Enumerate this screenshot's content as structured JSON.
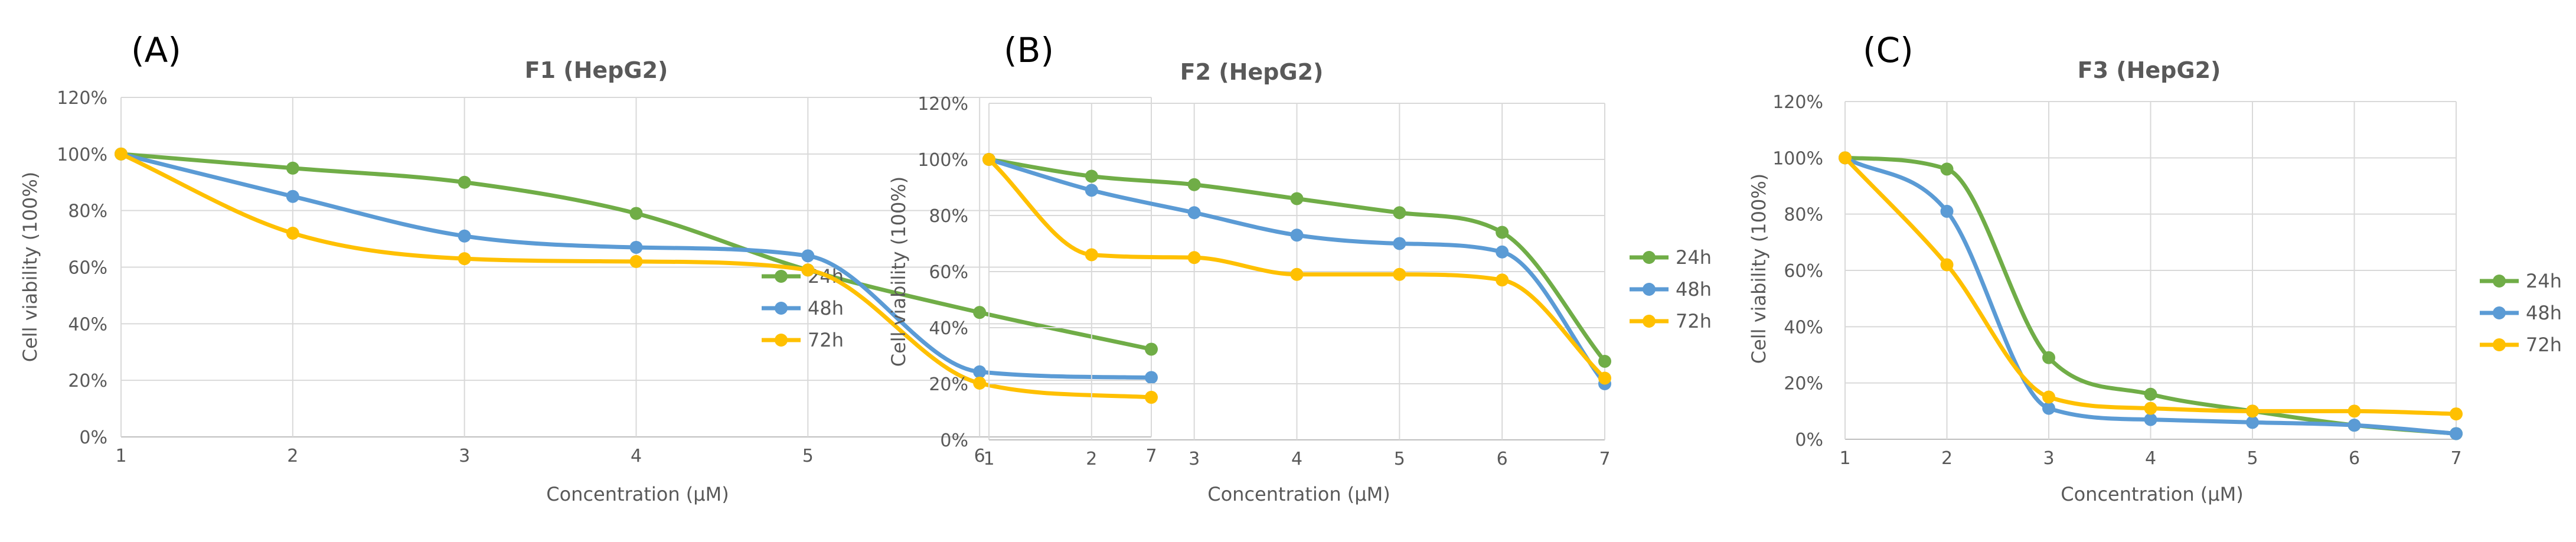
{
  "chart_data": [
    {
      "panel_label": "(A)",
      "type": "line",
      "title": "F1 (HepG2)",
      "xlabel": "Concentration (µM)",
      "ylabel": "Cell viability (100%)",
      "x": [
        1,
        2,
        3,
        4,
        5,
        6,
        7
      ],
      "xlim": [
        1,
        7
      ],
      "ylim": [
        0,
        120
      ],
      "y_ticks": [
        "0%",
        "20%",
        "40%",
        "60%",
        "80%",
        "100%",
        "120%"
      ],
      "grid": true,
      "legend_position": "right",
      "series": [
        {
          "name": "24h",
          "color": "#70AD47",
          "values": [
            100,
            95,
            90,
            79,
            59,
            44,
            31
          ]
        },
        {
          "name": "48h",
          "color": "#5B9BD5",
          "values": [
            100,
            85,
            71,
            67,
            64,
            23,
            21
          ]
        },
        {
          "name": "72h",
          "color": "#FFC000",
          "values": [
            100,
            72,
            63,
            62,
            59,
            19,
            14
          ]
        }
      ]
    },
    {
      "panel_label": "(B)",
      "type": "line",
      "title": "F2 (HepG2)",
      "xlabel": "Concentration (µM)",
      "ylabel": "Cell viability (100%)",
      "x": [
        1,
        2,
        3,
        4,
        5,
        6,
        7
      ],
      "xlim": [
        1,
        7
      ],
      "ylim": [
        0,
        120
      ],
      "y_ticks": [
        "0%",
        "20%",
        "40%",
        "60%",
        "80%",
        "100%",
        "120%"
      ],
      "grid": true,
      "legend_position": "right",
      "series": [
        {
          "name": "24h",
          "color": "#70AD47",
          "values": [
            100,
            94,
            91,
            86,
            81,
            74,
            28
          ]
        },
        {
          "name": "48h",
          "color": "#5B9BD5",
          "values": [
            100,
            89,
            81,
            73,
            70,
            67,
            20
          ]
        },
        {
          "name": "72h",
          "color": "#FFC000",
          "values": [
            100,
            66,
            65,
            59,
            59,
            57,
            22
          ]
        }
      ]
    },
    {
      "panel_label": "(C)",
      "type": "line",
      "title": "F3 (HepG2)",
      "xlabel": "Concentration (µM)",
      "ylabel": "Cell viability (100%)",
      "x": [
        1,
        2,
        3,
        4,
        5,
        6,
        7
      ],
      "xlim": [
        1,
        7
      ],
      "ylim": [
        0,
        120
      ],
      "y_ticks": [
        "0%",
        "20%",
        "40%",
        "60%",
        "80%",
        "100%",
        "120%"
      ],
      "grid": true,
      "legend_position": "right",
      "series": [
        {
          "name": "24h",
          "color": "#70AD47",
          "values": [
            100,
            96,
            29,
            16,
            10,
            5,
            2
          ]
        },
        {
          "name": "48h",
          "color": "#5B9BD5",
          "values": [
            100,
            81,
            11,
            7,
            6,
            5,
            2
          ]
        },
        {
          "name": "72h",
          "color": "#FFC000",
          "values": [
            100,
            62,
            15,
            11,
            10,
            10,
            9
          ]
        }
      ]
    }
  ]
}
